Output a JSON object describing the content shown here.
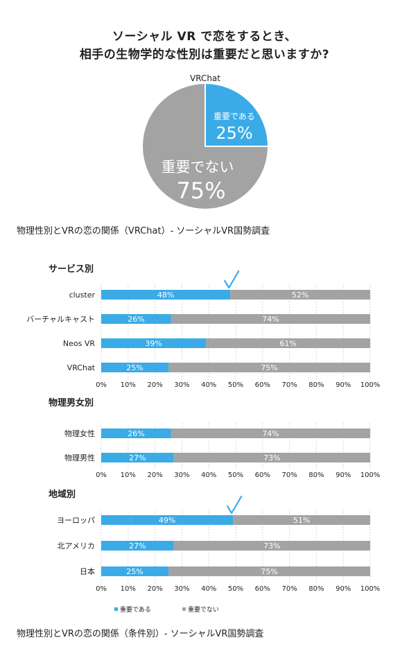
{
  "title_lines": [
    "ソーシャル VR で恋をするとき、",
    "相手の生物学的な性別は重要だと思いますか?"
  ],
  "captions": {
    "pie": "物理性別とVRの恋の関係（VRChat）- ソーシャルVR国勢調査",
    "bars": "物理性別とVRの恋の関係（条件別）- ソーシャルVR国勢調査"
  },
  "colors": {
    "important": "#3aabe6",
    "not_important": "#a3a3a3"
  },
  "chart_data": [
    {
      "type": "pie",
      "title": "VRChat",
      "slices": [
        {
          "label": "重要である",
          "value": 25,
          "value_label": "25%",
          "color": "#3aabe6"
        },
        {
          "label": "重要でない",
          "value": 75,
          "value_label": "75%",
          "color": "#a3a3a3"
        }
      ]
    },
    {
      "type": "bar",
      "orientation": "horizontal",
      "stacked": true,
      "title": "サービス別",
      "categories": [
        "cluster",
        "バーチャルキャスト",
        "Neos VR",
        "VRChat"
      ],
      "series": [
        {
          "name": "重要である",
          "values": [
            48,
            26,
            39,
            25
          ]
        },
        {
          "name": "重要でない",
          "values": [
            52,
            74,
            61,
            75
          ]
        }
      ],
      "highlight": [
        "cluster"
      ],
      "xlim": [
        0,
        100
      ],
      "xticks": [
        "0%",
        "10%",
        "20%",
        "30%",
        "40%",
        "50%",
        "60%",
        "70%",
        "80%",
        "90%",
        "100%"
      ]
    },
    {
      "type": "bar",
      "orientation": "horizontal",
      "stacked": true,
      "title": "物理男女別",
      "categories": [
        "物理女性",
        "物理男性"
      ],
      "series": [
        {
          "name": "重要である",
          "values": [
            26,
            27
          ]
        },
        {
          "name": "重要でない",
          "values": [
            74,
            73
          ]
        }
      ],
      "highlight": [],
      "xlim": [
        0,
        100
      ],
      "xticks": [
        "0%",
        "10%",
        "20%",
        "30%",
        "40%",
        "50%",
        "60%",
        "70%",
        "80%",
        "90%",
        "100%"
      ]
    },
    {
      "type": "bar",
      "orientation": "horizontal",
      "stacked": true,
      "title": "地域別",
      "categories": [
        "ヨーロッパ",
        "北アメリカ",
        "日本"
      ],
      "series": [
        {
          "name": "重要である",
          "values": [
            49,
            27,
            25
          ]
        },
        {
          "name": "重要でない",
          "values": [
            51,
            73,
            75
          ]
        }
      ],
      "highlight": [
        "ヨーロッパ"
      ],
      "xlim": [
        0,
        100
      ],
      "xticks": [
        "0%",
        "10%",
        "20%",
        "30%",
        "40%",
        "50%",
        "60%",
        "70%",
        "80%",
        "90%",
        "100%"
      ]
    }
  ],
  "legend": {
    "placement": "bottom-left",
    "items": [
      {
        "label": "重要である",
        "color": "#3aabe6"
      },
      {
        "label": "重要でない",
        "color": "#a3a3a3"
      }
    ]
  }
}
